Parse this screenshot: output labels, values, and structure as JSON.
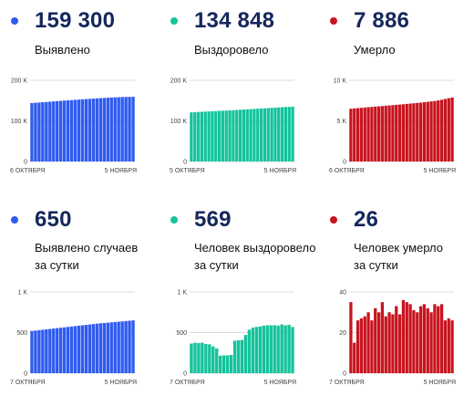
{
  "colors": {
    "blue": "#2f5bf0",
    "green": "#14c39b",
    "red": "#c8141e",
    "value_text": "#15275b",
    "grid": "#dddddd"
  },
  "panels": [
    {
      "value": "159 300",
      "label": "Выявлено"
    },
    {
      "value": "134 848",
      "label": "Выздоровело"
    },
    {
      "value": "7 886",
      "label": "Умерло"
    },
    {
      "value": "650",
      "label": "Выявлено случаев\nза сутки"
    },
    {
      "value": "569",
      "label": "Человек выздоровело\nза сутки"
    },
    {
      "value": "26",
      "label": "Человек умерло\nза сутки"
    }
  ],
  "chart_data": [
    {
      "type": "bar",
      "color": "blue",
      "x_start": "6 ОКТЯБРЯ",
      "x_end": "5 НОЯБРЯ",
      "yticks": [
        {
          "v": 0,
          "label": "0"
        },
        {
          "v": 100000,
          "label": "100 K"
        },
        {
          "v": 200000,
          "label": "200 K"
        }
      ],
      "ylim": [
        0,
        200000
      ],
      "values": [
        144000,
        144700,
        145300,
        146000,
        146600,
        147300,
        148000,
        148600,
        149300,
        150000,
        150600,
        151200,
        151900,
        152500,
        153100,
        153700,
        154300,
        154900,
        155500,
        156000,
        156600,
        157100,
        157600,
        158000,
        158400,
        158800,
        159000,
        159200,
        159300
      ]
    },
    {
      "type": "bar",
      "color": "green",
      "x_start": "5 ОКТЯБРЯ",
      "x_end": "5 НОЯБРЯ",
      "yticks": [
        {
          "v": 0,
          "label": "0"
        },
        {
          "v": 100000,
          "label": "100 K"
        },
        {
          "v": 200000,
          "label": "200 K"
        }
      ],
      "ylim": [
        0,
        200000
      ],
      "values": [
        121000,
        121500,
        122000,
        122400,
        122900,
        123300,
        123800,
        124200,
        124700,
        125100,
        125600,
        126000,
        126500,
        127000,
        127500,
        128000,
        128500,
        129000,
        129500,
        130000,
        130600,
        131100,
        131600,
        132200,
        132700,
        133200,
        133700,
        134200,
        134500,
        134848
      ]
    },
    {
      "type": "bar",
      "color": "red",
      "x_start": "6 ОКТЯБРЯ",
      "x_end": "5 НОЯБРЯ",
      "yticks": [
        {
          "v": 0,
          "label": "0"
        },
        {
          "v": 5000,
          "label": "5 K"
        },
        {
          "v": 10000,
          "label": "10 K"
        }
      ],
      "ylim": [
        0,
        10000
      ],
      "values": [
        6500,
        6540,
        6580,
        6610,
        6650,
        6690,
        6720,
        6760,
        6790,
        6830,
        6870,
        6900,
        6940,
        6980,
        7010,
        7050,
        7090,
        7130,
        7170,
        7210,
        7250,
        7300,
        7350,
        7400,
        7450,
        7520,
        7600,
        7700,
        7800,
        7886
      ]
    },
    {
      "type": "bar",
      "color": "blue",
      "x_start": "7 ОКТЯБРЯ",
      "x_end": "5 НОЯБРЯ",
      "yticks": [
        {
          "v": 0,
          "label": "0"
        },
        {
          "v": 500,
          "label": "500"
        },
        {
          "v": 1000,
          "label": "1 K"
        }
      ],
      "ylim": [
        0,
        1000
      ],
      "values": [
        520,
        525,
        530,
        535,
        540,
        545,
        550,
        555,
        560,
        565,
        570,
        575,
        580,
        585,
        590,
        595,
        600,
        605,
        610,
        615,
        618,
        622,
        626,
        630,
        634,
        638,
        642,
        646,
        650
      ]
    },
    {
      "type": "bar",
      "color": "green",
      "x_start": "7 ОКТЯБРЯ",
      "x_end": "5 НОЯБРЯ",
      "yticks": [
        {
          "v": 0,
          "label": "0"
        },
        {
          "v": 500,
          "label": "500"
        },
        {
          "v": 1000,
          "label": "1 K"
        }
      ],
      "ylim": [
        0,
        1000
      ],
      "values": [
        365,
        375,
        370,
        375,
        360,
        355,
        330,
        305,
        215,
        220,
        220,
        225,
        400,
        405,
        410,
        470,
        535,
        560,
        570,
        575,
        585,
        590,
        590,
        590,
        585,
        600,
        590,
        595,
        569
      ]
    },
    {
      "type": "bar",
      "color": "red",
      "x_start": "7 ОКТЯБРЯ",
      "x_end": "5 НОЯБРЯ",
      "yticks": [
        {
          "v": 0,
          "label": "0"
        },
        {
          "v": 20,
          "label": "20"
        },
        {
          "v": 40,
          "label": "40"
        }
      ],
      "ylim": [
        0,
        40
      ],
      "values": [
        35,
        15,
        26,
        27,
        28,
        30,
        26,
        32,
        30,
        35,
        28,
        30,
        29,
        33,
        29,
        36,
        35,
        34,
        31,
        30,
        33,
        34,
        32,
        30,
        34,
        33,
        34,
        26,
        27,
        26
      ]
    }
  ]
}
